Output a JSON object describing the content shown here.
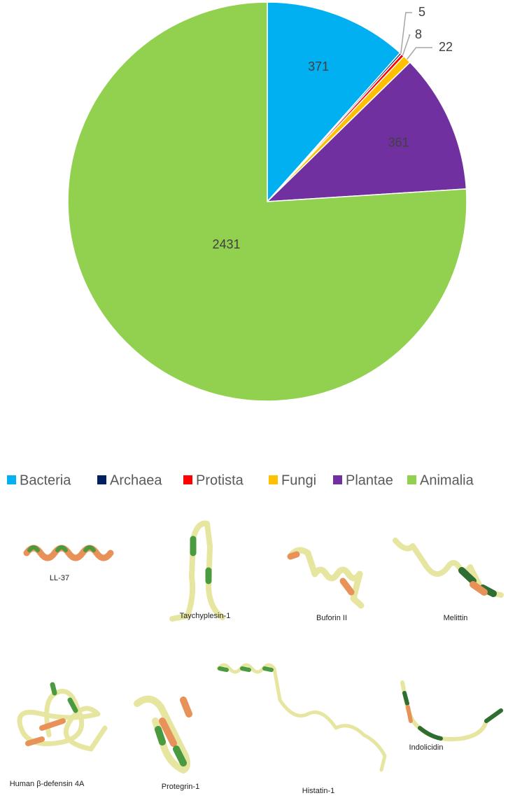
{
  "chart_data": {
    "type": "pie",
    "categories": [
      "Bacteria",
      "Archaea",
      "Protista",
      "Fungi",
      "Plantae",
      "Animalia"
    ],
    "values": [
      371,
      5,
      8,
      22,
      361,
      2431
    ],
    "colors": [
      "#00b0f0",
      "#002060",
      "#ff0000",
      "#ffc000",
      "#7030a0",
      "#92d050"
    ],
    "legend": "bottom"
  },
  "structures": [
    {
      "label": "LL-37"
    },
    {
      "label": "Taychyplesin-1"
    },
    {
      "label": "Buforin II"
    },
    {
      "label": "Melittin"
    },
    {
      "label": "Human β-defensin 4A"
    },
    {
      "label": "Protegrin-1"
    },
    {
      "label": "Histatin-1"
    },
    {
      "label": "Indolicidin"
    }
  ]
}
